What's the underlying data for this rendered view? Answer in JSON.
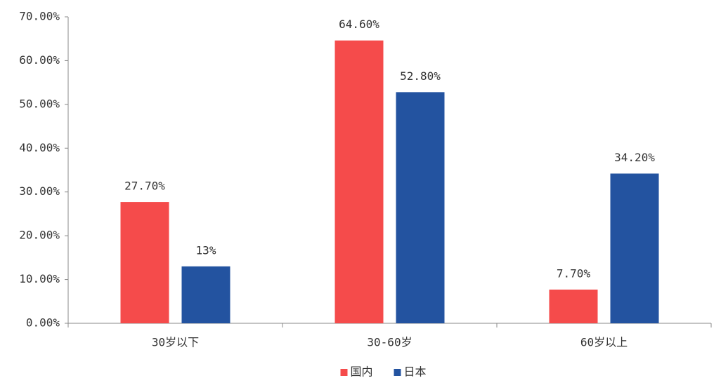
{
  "chart_data": {
    "type": "bar",
    "categories": [
      "30岁以下",
      "30-60岁",
      "60岁以上"
    ],
    "series": [
      {
        "name": "国内",
        "color": "#f54b4b",
        "values": [
          27.7,
          64.6,
          7.7
        ],
        "value_labels": [
          "27.70%",
          "64.60%",
          "7.70%"
        ]
      },
      {
        "name": "日本",
        "color": "#2353a0",
        "values": [
          13,
          52.8,
          34.2
        ],
        "value_labels": [
          "13%",
          "52.80%",
          "34.20%"
        ]
      }
    ],
    "ylim": [
      0,
      70
    ],
    "yticks": [
      {
        "value": 0,
        "label": "0.00%"
      },
      {
        "value": 10,
        "label": "10.00%"
      },
      {
        "value": 20,
        "label": "20.00%"
      },
      {
        "value": 30,
        "label": "30.00%"
      },
      {
        "value": 40,
        "label": "40.00%"
      },
      {
        "value": 50,
        "label": "50.00%"
      },
      {
        "value": 60,
        "label": "60.00%"
      },
      {
        "value": 70,
        "label": "70.00%"
      }
    ],
    "grid": false,
    "legend": "bottom"
  }
}
